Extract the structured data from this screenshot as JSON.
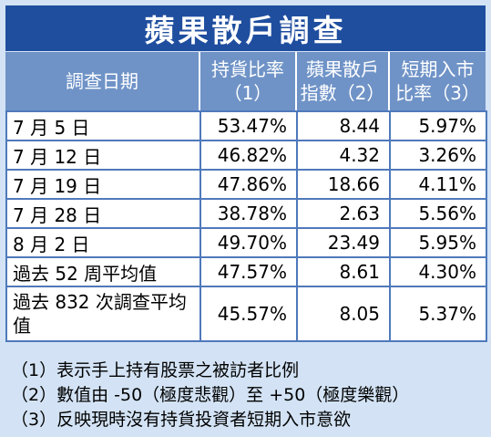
{
  "title": "蘋果散戶調查",
  "columns": [
    {
      "line1": "調查日期",
      "line2": ""
    },
    {
      "line1": "持貨比率",
      "line2": "（1）"
    },
    {
      "line1": "蘋果散戶",
      "line2": "指數（2）"
    },
    {
      "line1": "短期入市",
      "line2": "比率（3）"
    }
  ],
  "rows": [
    {
      "label": "7 月 5 日",
      "c1": "53.47%",
      "c2": "8.44",
      "c3": "5.97%"
    },
    {
      "label": "7 月 12 日",
      "c1": "46.82%",
      "c2": "4.32",
      "c3": "3.26%"
    },
    {
      "label": "7 月 19 日",
      "c1": "47.86%",
      "c2": "18.66",
      "c3": "4.11%"
    },
    {
      "label": "7 月 28 日",
      "c1": "38.78%",
      "c2": "2.63",
      "c3": "5.56%"
    },
    {
      "label": "8 月 2 日",
      "c1": "49.70%",
      "c2": "23.49",
      "c3": "5.95%"
    },
    {
      "label": "過去 52 周平均值",
      "c1": "47.57%",
      "c2": "8.61",
      "c3": "4.30%"
    },
    {
      "label": "過去 832 次調查平均值",
      "c1": "45.57%",
      "c2": "8.05",
      "c3": "5.37%"
    }
  ],
  "notes": [
    "（1）表示手上持有股票之被訪者比例",
    "（2）數值由 -50（極度悲觀）至 +50（極度樂觀）",
    "（3）反映現時沒有持貨投資者短期入市意欲"
  ],
  "colors": {
    "title_bg": "#1f4e9f",
    "header_bg": "#6f93c7",
    "panel_bg": "#d3e3f5",
    "grid": "#4f79bb"
  }
}
